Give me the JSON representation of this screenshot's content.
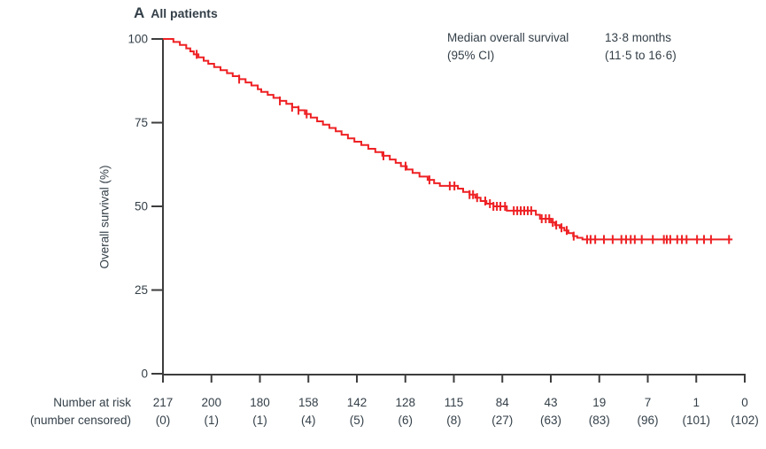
{
  "colors": {
    "curve": "#ee2124",
    "text": "#333f48",
    "axis": "#3d3d3d"
  },
  "chart_data": {
    "type": "line",
    "subtype": "kaplan-meier-survival",
    "panel_label": "A",
    "title": "All patients",
    "ylabel": "Overall survival (%)",
    "ylim": [
      0,
      100
    ],
    "y_ticks": [
      100,
      75,
      50,
      25,
      0
    ],
    "x_tick_count": 13,
    "x_tick_labels_visible": false,
    "annotation": {
      "label_line1": "Median overall survival",
      "label_line2": "(95% CI)",
      "value_line1": "13·8 months",
      "value_line2": "(11·5 to 16·6)"
    },
    "series": [
      {
        "name": "All patients",
        "color": "#ee2124",
        "end_x": 97.9,
        "steps": [
          [
            0.0,
            100
          ],
          [
            1.8,
            99.1
          ],
          [
            2.9,
            98.2
          ],
          [
            4.0,
            97.2
          ],
          [
            4.7,
            96.3
          ],
          [
            5.3,
            95.4
          ],
          [
            6.1,
            94.5
          ],
          [
            7.0,
            93.5
          ],
          [
            7.8,
            92.6
          ],
          [
            8.8,
            91.6
          ],
          [
            9.9,
            90.7
          ],
          [
            11.0,
            89.8
          ],
          [
            12.0,
            88.9
          ],
          [
            13.1,
            88.0
          ],
          [
            14.2,
            87.0
          ],
          [
            15.2,
            86.1
          ],
          [
            16.3,
            85.0
          ],
          [
            16.9,
            84.2
          ],
          [
            18.0,
            83.3
          ],
          [
            19.0,
            82.4
          ],
          [
            20.1,
            81.5
          ],
          [
            21.2,
            80.6
          ],
          [
            22.2,
            79.6
          ],
          [
            23.3,
            78.7
          ],
          [
            24.4,
            77.6
          ],
          [
            25.4,
            76.5
          ],
          [
            26.5,
            75.4
          ],
          [
            27.5,
            74.4
          ],
          [
            28.6,
            73.4
          ],
          [
            29.7,
            72.4
          ],
          [
            30.7,
            71.4
          ],
          [
            31.8,
            70.3
          ],
          [
            32.9,
            69.3
          ],
          [
            34.1,
            68.3
          ],
          [
            35.3,
            67.2
          ],
          [
            36.5,
            66.2
          ],
          [
            37.7,
            65.1
          ],
          [
            39.0,
            64.0
          ],
          [
            40.0,
            63.0
          ],
          [
            40.9,
            62.0
          ],
          [
            41.9,
            61.0
          ],
          [
            42.9,
            60.0
          ],
          [
            44.1,
            58.9
          ],
          [
            45.5,
            57.9
          ],
          [
            46.6,
            56.9
          ],
          [
            47.6,
            56.1
          ],
          [
            50.7,
            55.3
          ],
          [
            51.6,
            54.3
          ],
          [
            52.7,
            53.5
          ],
          [
            53.7,
            52.6
          ],
          [
            54.6,
            51.6
          ],
          [
            55.6,
            50.8
          ],
          [
            56.8,
            50.0
          ],
          [
            59.1,
            48.7
          ],
          [
            64.1,
            47.5
          ],
          [
            64.8,
            46.3
          ],
          [
            66.7,
            45.2
          ],
          [
            67.4,
            44.4
          ],
          [
            68.2,
            43.6
          ],
          [
            69.0,
            42.8
          ],
          [
            69.7,
            42.0
          ],
          [
            70.5,
            41.1
          ],
          [
            71.2,
            40.6
          ],
          [
            72.1,
            40.1
          ]
        ],
        "censor_x": [
          5.8,
          13.1,
          20.1,
          22.2,
          23.3,
          24.7,
          37.9,
          41.7,
          45.8,
          49.3,
          50.1,
          52.7,
          53.3,
          54.0,
          55.4,
          56.2,
          56.8,
          57.4,
          58.0,
          58.8,
          60.3,
          60.9,
          61.5,
          62.1,
          62.7,
          63.3,
          65.1,
          65.8,
          66.4,
          67.0,
          67.6,
          68.5,
          69.4,
          70.6,
          72.9,
          73.5,
          74.3,
          75.8,
          77.3,
          78.8,
          79.6,
          80.4,
          81.1,
          82.3,
          84.2,
          86.1,
          86.6,
          87.2,
          88.4,
          89.2,
          90.0,
          91.8,
          93.0,
          94.2,
          97.3
        ]
      }
    ],
    "risk_table": {
      "row1_label": "Number at risk",
      "row2_label": "(number censored)",
      "number_at_risk": [
        217,
        200,
        180,
        158,
        142,
        128,
        115,
        84,
        43,
        19,
        7,
        1,
        0
      ],
      "number_censored": [
        0,
        1,
        1,
        4,
        5,
        6,
        8,
        27,
        63,
        83,
        96,
        101,
        102
      ]
    }
  }
}
